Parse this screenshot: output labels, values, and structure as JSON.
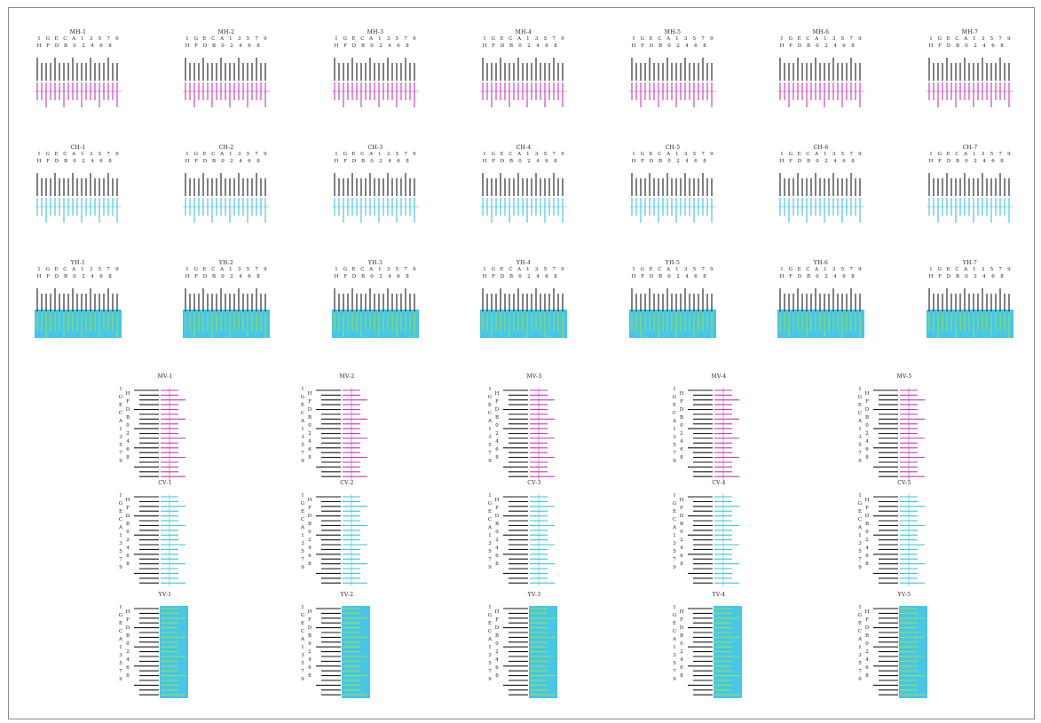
{
  "colors": {
    "magenta": "#c23ab8",
    "cyan": "#3cc3d6",
    "yellow": "#d8e22a",
    "yellow_bg": "#47c6e8",
    "black": "#1a1a1a"
  },
  "legend": {
    "top_row": [
      "I",
      "G",
      "E",
      "C",
      "A",
      "1",
      "3",
      "5",
      "7",
      "9"
    ],
    "bottom_row": [
      "H",
      "F",
      "D",
      "B",
      "0",
      "2",
      "4",
      "6",
      "8"
    ],
    "v_left": [
      "I",
      "G",
      "E",
      "C",
      "A",
      "1",
      "3",
      "5",
      "7",
      "9"
    ],
    "v_right": [
      "H",
      "F",
      "D",
      "B",
      "0",
      "2",
      "4",
      "6",
      "8"
    ]
  },
  "horizontal_groups": [
    {
      "color": "magenta",
      "titles": [
        "MH-1",
        "MH-2",
        "MH-3",
        "MH-4",
        "MH-5",
        "MH-6",
        "MH-7"
      ]
    },
    {
      "color": "cyan",
      "titles": [
        "CH-1",
        "CH-2",
        "CH-3",
        "CH-4",
        "CH-5",
        "CH-6",
        "CH-7"
      ]
    },
    {
      "color": "yellow",
      "titles": [
        "YH-1",
        "YH-2",
        "YH-3",
        "YH-4",
        "YH-5",
        "YH-6",
        "YH-7"
      ]
    }
  ],
  "vertical_groups": [
    {
      "color": "magenta",
      "titles": [
        "MV-1",
        "MV-2",
        "MV-3",
        "MV-4",
        "MV-5"
      ]
    },
    {
      "color": "cyan",
      "titles": [
        "CV-1",
        "CV-2",
        "CV-3",
        "CV-4",
        "CV-5"
      ]
    },
    {
      "color": "yellow",
      "titles": [
        "YV-1",
        "YV-2",
        "YV-3",
        "YV-4",
        "YV-5"
      ]
    }
  ]
}
